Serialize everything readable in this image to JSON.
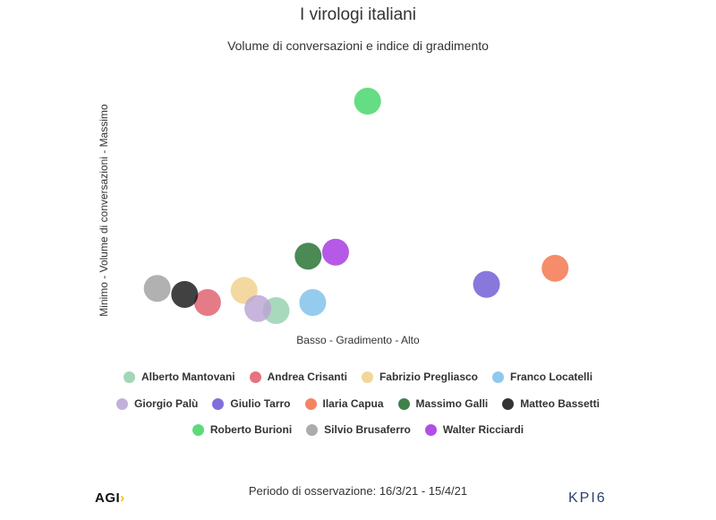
{
  "chart_data": {
    "type": "scatter",
    "title": "I virologi italiani",
    "subtitle": "Volume di conversazioni e indice di gradimento",
    "xlabel": "Basso - Gradimento - Alto",
    "ylabel": "Minimo - Volume di conversazioni - Massimo",
    "xlim": [
      0,
      100
    ],
    "ylim": [
      0,
      100
    ],
    "grid": false,
    "legend_position": "bottom",
    "series": [
      {
        "name": "Alberto Mantovani",
        "color": "#93cfad",
        "x": 32,
        "y": -4
      },
      {
        "name": "Andrea Crisanti",
        "color": "#e05a6a",
        "x": 17,
        "y": 0
      },
      {
        "name": "Fabrizio Pregliasco",
        "color": "#f0cf88",
        "x": 25,
        "y": 6
      },
      {
        "name": "Franco Locatelli",
        "color": "#7bbfe8",
        "x": 40,
        "y": 0
      },
      {
        "name": "Giorgio Palù",
        "color": "#b9a2d3",
        "x": 28,
        "y": -3
      },
      {
        "name": "Giulio Tarro",
        "color": "#6b56d3",
        "x": 78,
        "y": 9
      },
      {
        "name": "Ilaria Capua",
        "color": "#f26f45",
        "x": 93,
        "y": 17
      },
      {
        "name": "Massimo Galli",
        "color": "#1e6b2b",
        "x": 39,
        "y": 23
      },
      {
        "name": "Matteo Bassetti",
        "color": "#111111",
        "x": 12,
        "y": 4
      },
      {
        "name": "Roberto Burioni",
        "color": "#3fd464",
        "x": 52,
        "y": 100
      },
      {
        "name": "Silvio Brusaferro",
        "color": "#9e9e9e",
        "x": 6,
        "y": 7
      },
      {
        "name": "Walter Ricciardi",
        "color": "#a230e0",
        "x": 45,
        "y": 25
      }
    ]
  },
  "legend": {
    "rows": [
      [
        "Alberto Mantovani",
        "Andrea Crisanti",
        "Fabrizio Pregliasco",
        "Franco Locatelli"
      ],
      [
        "Giorgio Palù",
        "Giulio Tarro",
        "Ilaria Capua",
        "Massimo Galli",
        "Matteo Bassetti"
      ],
      [
        "Roberto Burioni",
        "Silvio Brusaferro",
        "Walter Ricciardi"
      ]
    ]
  },
  "footer": {
    "period": "Periodo di osservazione: 16/3/21 - 15/4/21",
    "logo_left": "AGI",
    "logo_left_mark": "›",
    "logo_right": "KPI6"
  }
}
